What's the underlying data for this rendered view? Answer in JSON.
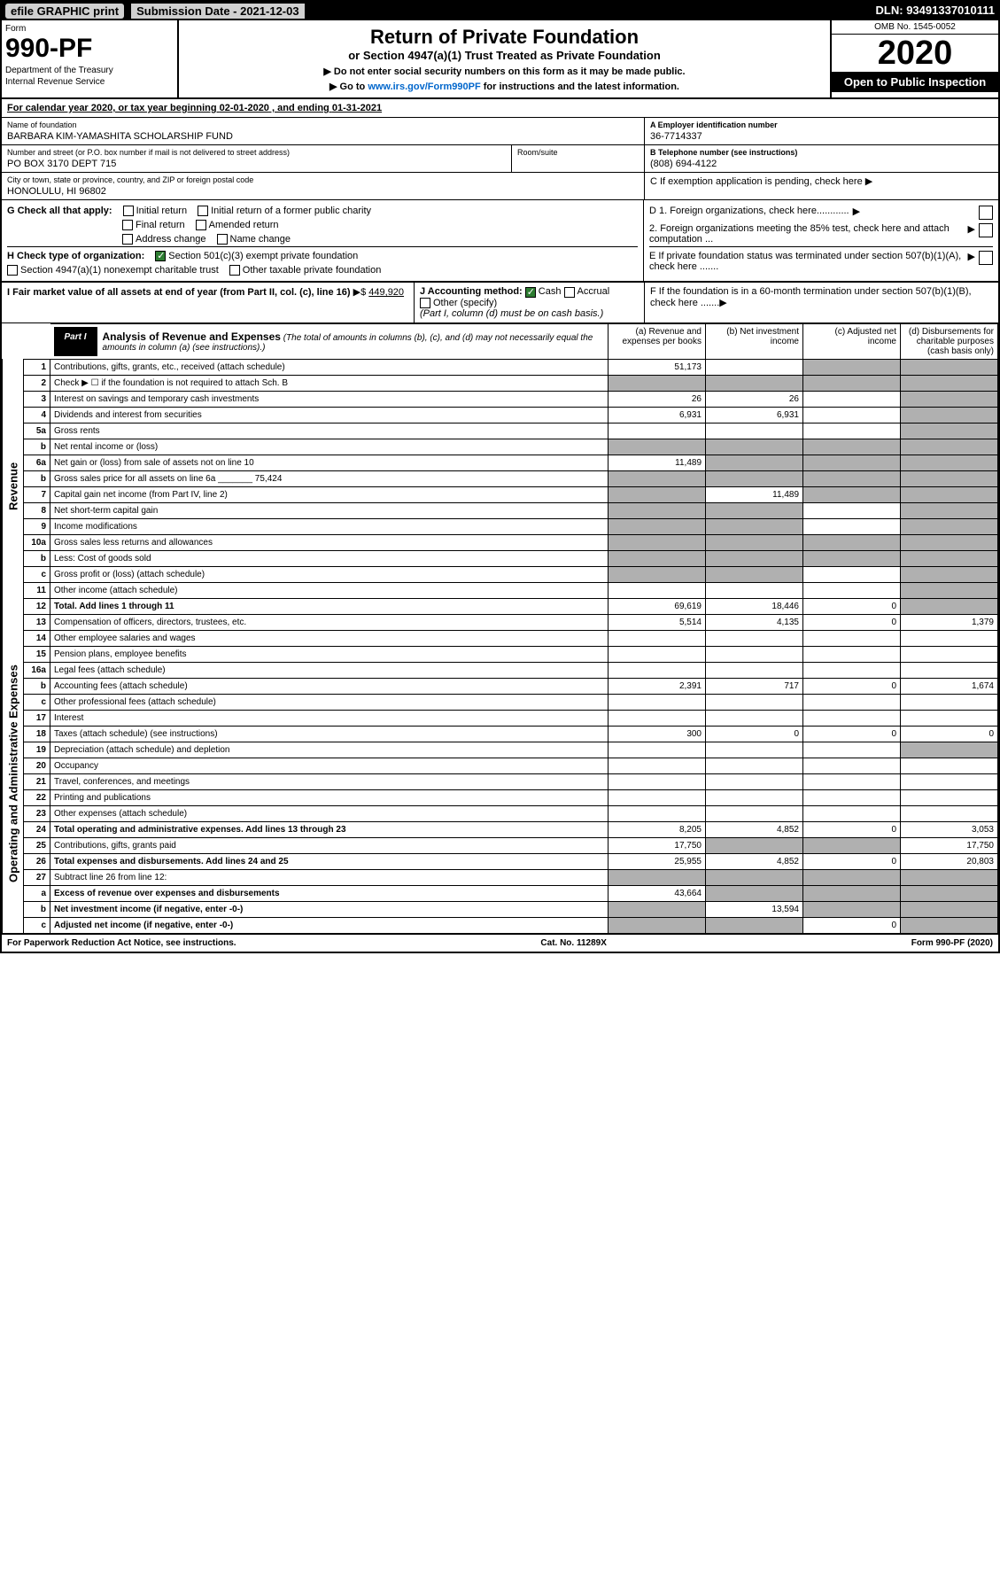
{
  "top_bar": {
    "efile": "efile GRAPHIC print",
    "submission": "Submission Date - 2021-12-03",
    "dln": "DLN: 93491337010111"
  },
  "header": {
    "form_label": "Form",
    "form_num": "990-PF",
    "dept1": "Department of the Treasury",
    "dept2": "Internal Revenue Service",
    "title": "Return of Private Foundation",
    "subtitle": "or Section 4947(a)(1) Trust Treated as Private Foundation",
    "note1": "▶ Do not enter social security numbers on this form as it may be made public.",
    "note2_pre": "▶ Go to ",
    "note2_link": "www.irs.gov/Form990PF",
    "note2_post": " for instructions and the latest information.",
    "omb": "OMB No. 1545-0052",
    "year": "2020",
    "inspect": "Open to Public Inspection"
  },
  "cal_year": {
    "prefix": "For calendar year 2020, or tax year beginning ",
    "begin": "02-01-2020",
    "mid": " , and ending ",
    "end": "01-31-2021"
  },
  "info": {
    "name_lbl": "Name of foundation",
    "name_val": "BARBARA KIM-YAMASHITA SCHOLARSHIP FUND",
    "addr_lbl": "Number and street (or P.O. box number if mail is not delivered to street address)",
    "addr_val": "PO BOX 3170 DEPT 715",
    "room_lbl": "Room/suite",
    "city_lbl": "City or town, state or province, country, and ZIP or foreign postal code",
    "city_val": "HONOLULU, HI  96802",
    "ein_lbl": "A Employer identification number",
    "ein_val": "36-7714337",
    "tel_lbl": "B Telephone number (see instructions)",
    "tel_val": "(808) 694-4122",
    "c_lbl": "C If exemption application is pending, check here"
  },
  "section_g": {
    "label": "G Check all that apply:",
    "opts": [
      "Initial return",
      "Final return",
      "Address change",
      "Initial return of a former public charity",
      "Amended return",
      "Name change"
    ]
  },
  "section_h": {
    "label": "H Check type of organization:",
    "opt1": "Section 501(c)(3) exempt private foundation",
    "opt2": "Section 4947(a)(1) nonexempt charitable trust",
    "opt3": "Other taxable private foundation"
  },
  "section_d": {
    "d1": "D 1. Foreign organizations, check here............",
    "d2": "2. Foreign organizations meeting the 85% test, check here and attach computation ...",
    "e": "E  If private foundation status was terminated under section 507(b)(1)(A), check here .......",
    "f": "F  If the foundation is in a 60-month termination under section 507(b)(1)(B), check here ......."
  },
  "section_i": {
    "label": "I Fair market value of all assets at end of year (from Part II, col. (c), line 16)",
    "arrow": "▶$",
    "val": "449,920"
  },
  "section_j": {
    "label": "J Accounting method:",
    "cash": "Cash",
    "accrual": "Accrual",
    "other": "Other (specify)",
    "note": "(Part I, column (d) must be on cash basis.)"
  },
  "part1": {
    "label": "Part I",
    "title": "Analysis of Revenue and Expenses",
    "title_note": " (The total of amounts in columns (b), (c), and (d) may not necessarily equal the amounts in column (a) (see instructions).)",
    "col_a": "(a) Revenue and expenses per books",
    "col_b": "(b) Net investment income",
    "col_c": "(c) Adjusted net income",
    "col_d": "(d) Disbursements for charitable purposes (cash basis only)"
  },
  "revenue_label": "Revenue",
  "expenses_label": "Operating and Administrative Expenses",
  "rows": [
    {
      "n": "1",
      "d": "Contributions, gifts, grants, etc., received (attach schedule)",
      "a": "51,173",
      "b": "",
      "c_sh": true,
      "d_sh": true
    },
    {
      "n": "2",
      "d": "Check ▶ ☐ if the foundation is not required to attach Sch. B",
      "a_sh": true,
      "b_sh": true,
      "c_sh": true,
      "d_sh": true
    },
    {
      "n": "3",
      "d": "Interest on savings and temporary cash investments",
      "a": "26",
      "b": "26",
      "c": "",
      "d_sh": true
    },
    {
      "n": "4",
      "d": "Dividends and interest from securities",
      "a": "6,931",
      "b": "6,931",
      "c": "",
      "d_sh": true
    },
    {
      "n": "5a",
      "d": "Gross rents",
      "a": "",
      "b": "",
      "c": "",
      "d_sh": true
    },
    {
      "n": "b",
      "d": "Net rental income or (loss)",
      "a_sh": true,
      "b_sh": true,
      "c_sh": true,
      "d_sh": true
    },
    {
      "n": "6a",
      "d": "Net gain or (loss) from sale of assets not on line 10",
      "a": "11,489",
      "b_sh": true,
      "c_sh": true,
      "d_sh": true
    },
    {
      "n": "b",
      "d": "Gross sales price for all assets on line 6a _______ 75,424",
      "a_sh": true,
      "b_sh": true,
      "c_sh": true,
      "d_sh": true
    },
    {
      "n": "7",
      "d": "Capital gain net income (from Part IV, line 2)",
      "a_sh": true,
      "b": "11,489",
      "c_sh": true,
      "d_sh": true
    },
    {
      "n": "8",
      "d": "Net short-term capital gain",
      "a_sh": true,
      "b_sh": true,
      "c": "",
      "d_sh": true
    },
    {
      "n": "9",
      "d": "Income modifications",
      "a_sh": true,
      "b_sh": true,
      "c": "",
      "d_sh": true
    },
    {
      "n": "10a",
      "d": "Gross sales less returns and allowances",
      "a_sh": true,
      "b_sh": true,
      "c_sh": true,
      "d_sh": true
    },
    {
      "n": "b",
      "d": "Less: Cost of goods sold",
      "a_sh": true,
      "b_sh": true,
      "c_sh": true,
      "d_sh": true
    },
    {
      "n": "c",
      "d": "Gross profit or (loss) (attach schedule)",
      "a_sh": true,
      "b_sh": true,
      "c": "",
      "d_sh": true
    },
    {
      "n": "11",
      "d": "Other income (attach schedule)",
      "a": "",
      "b": "",
      "c": "",
      "d_sh": true
    },
    {
      "n": "12",
      "d": "Total. Add lines 1 through 11",
      "bold": true,
      "a": "69,619",
      "b": "18,446",
      "c": "0",
      "d_sh": true
    },
    {
      "n": "13",
      "d": "Compensation of officers, directors, trustees, etc.",
      "a": "5,514",
      "b": "4,135",
      "c": "0",
      "dd": "1,379"
    },
    {
      "n": "14",
      "d": "Other employee salaries and wages",
      "a": "",
      "b": "",
      "c": "",
      "dd": ""
    },
    {
      "n": "15",
      "d": "Pension plans, employee benefits",
      "a": "",
      "b": "",
      "c": "",
      "dd": ""
    },
    {
      "n": "16a",
      "d": "Legal fees (attach schedule)",
      "a": "",
      "b": "",
      "c": "",
      "dd": ""
    },
    {
      "n": "b",
      "d": "Accounting fees (attach schedule)",
      "a": "2,391",
      "b": "717",
      "c": "0",
      "dd": "1,674"
    },
    {
      "n": "c",
      "d": "Other professional fees (attach schedule)",
      "a": "",
      "b": "",
      "c": "",
      "dd": ""
    },
    {
      "n": "17",
      "d": "Interest",
      "a": "",
      "b": "",
      "c": "",
      "dd": ""
    },
    {
      "n": "18",
      "d": "Taxes (attach schedule) (see instructions)",
      "a": "300",
      "b": "0",
      "c": "0",
      "dd": "0"
    },
    {
      "n": "19",
      "d": "Depreciation (attach schedule) and depletion",
      "a": "",
      "b": "",
      "c": "",
      "d_sh": true
    },
    {
      "n": "20",
      "d": "Occupancy",
      "a": "",
      "b": "",
      "c": "",
      "dd": ""
    },
    {
      "n": "21",
      "d": "Travel, conferences, and meetings",
      "a": "",
      "b": "",
      "c": "",
      "dd": ""
    },
    {
      "n": "22",
      "d": "Printing and publications",
      "a": "",
      "b": "",
      "c": "",
      "dd": ""
    },
    {
      "n": "23",
      "d": "Other expenses (attach schedule)",
      "a": "",
      "b": "",
      "c": "",
      "dd": ""
    },
    {
      "n": "24",
      "d": "Total operating and administrative expenses. Add lines 13 through 23",
      "bold": true,
      "a": "8,205",
      "b": "4,852",
      "c": "0",
      "dd": "3,053"
    },
    {
      "n": "25",
      "d": "Contributions, gifts, grants paid",
      "a": "17,750",
      "b_sh": true,
      "c_sh": true,
      "dd": "17,750"
    },
    {
      "n": "26",
      "d": "Total expenses and disbursements. Add lines 24 and 25",
      "bold": true,
      "a": "25,955",
      "b": "4,852",
      "c": "0",
      "dd": "20,803"
    },
    {
      "n": "27",
      "d": "Subtract line 26 from line 12:",
      "a_sh": true,
      "b_sh": true,
      "c_sh": true,
      "d_sh": true
    },
    {
      "n": "a",
      "d": "Excess of revenue over expenses and disbursements",
      "bold": true,
      "a": "43,664",
      "b_sh": true,
      "c_sh": true,
      "d_sh": true
    },
    {
      "n": "b",
      "d": "Net investment income (if negative, enter -0-)",
      "bold": true,
      "a_sh": true,
      "b": "13,594",
      "c_sh": true,
      "d_sh": true
    },
    {
      "n": "c",
      "d": "Adjusted net income (if negative, enter -0-)",
      "bold": true,
      "a_sh": true,
      "b_sh": true,
      "c": "0",
      "d_sh": true
    }
  ],
  "footer": {
    "left": "For Paperwork Reduction Act Notice, see instructions.",
    "mid": "Cat. No. 11289X",
    "right": "Form 990-PF (2020)"
  },
  "colors": {
    "shaded": "#b0b0b0",
    "checked": "#2e7d32",
    "link": "#0066cc"
  }
}
